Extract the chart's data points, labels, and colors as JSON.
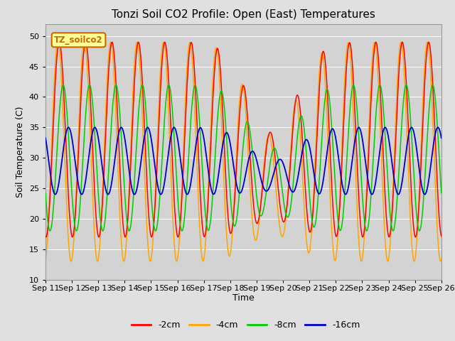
{
  "title": "Tonzi Soil CO2 Profile: Open (East) Temperatures",
  "xlabel": "Time",
  "ylabel": "Soil Temperature (C)",
  "ylim": [
    10,
    52
  ],
  "yticks": [
    10,
    15,
    20,
    25,
    30,
    35,
    40,
    45,
    50
  ],
  "xlim_start": 11,
  "xlim_end": 26,
  "xtick_labels": [
    "Sep 11",
    "Sep 12",
    "Sep 13",
    "Sep 14",
    "Sep 15",
    "Sep 16",
    "Sep 17",
    "Sep 18",
    "Sep 19",
    "Sep 20",
    "Sep 21",
    "Sep 22",
    "Sep 23",
    "Sep 24",
    "Sep 25",
    "Sep 26"
  ],
  "colors": {
    "-2cm": "#ff0000",
    "-4cm": "#ffa500",
    "-8cm": "#00cc00",
    "-16cm": "#0000cc"
  },
  "background_color": "#e0e0e0",
  "plot_bg_color": "#d3d3d3",
  "legend_label": "TZ_soilco2",
  "legend_bg": "#ffff99",
  "legend_border": "#cc6600",
  "title_fontsize": 11,
  "label_fontsize": 9,
  "tick_fontsize": 8
}
